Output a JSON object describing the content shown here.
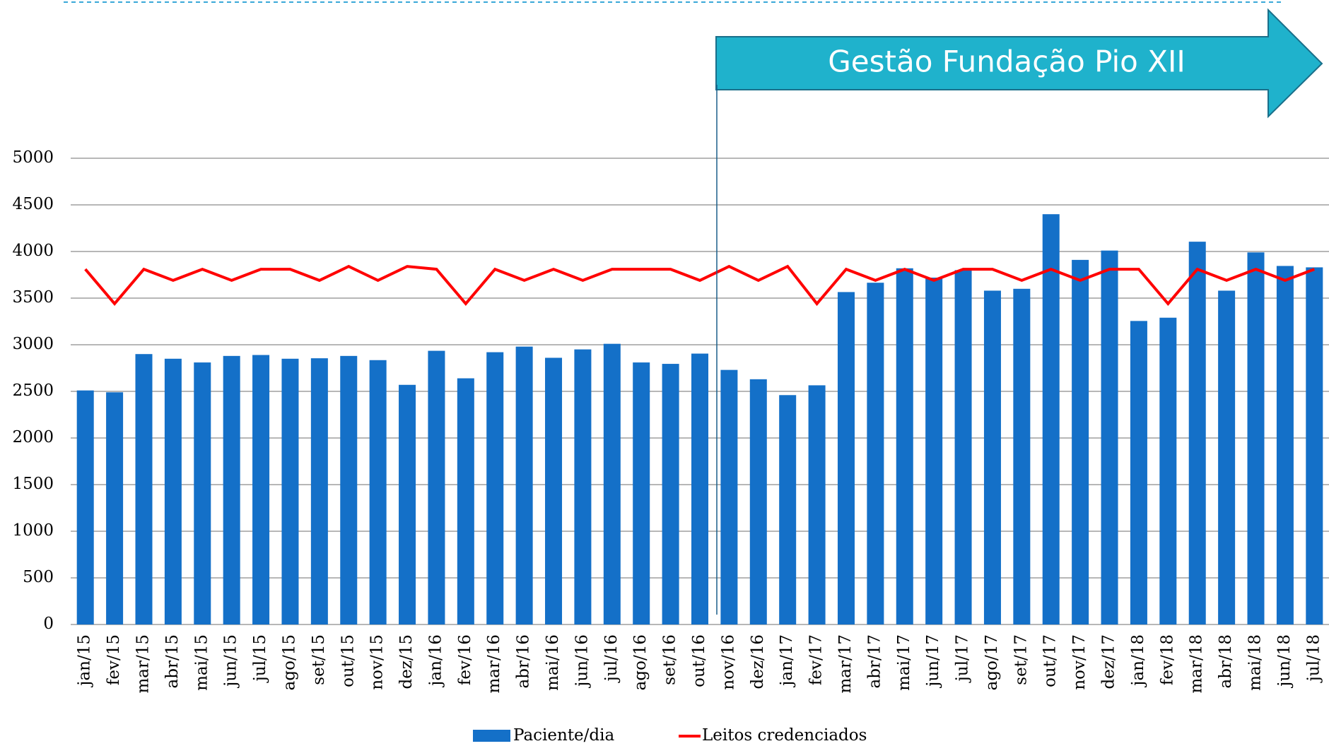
{
  "chart_data": {
    "type": "bar-line",
    "annotation": "Gestão Fundação Pio XII",
    "categories": [
      "jan/15",
      "fev/15",
      "mar/15",
      "abr/15",
      "mai/15",
      "jun/15",
      "jul/15",
      "ago/15",
      "set/15",
      "out/15",
      "nov/15",
      "dez/15",
      "jan/16",
      "fev/16",
      "mar/16",
      "abr/16",
      "mai/16",
      "jun/16",
      "jul/16",
      "ago/16",
      "set/16",
      "out/16",
      "nov/16",
      "dez/16",
      "jan/17",
      "fev/17",
      "mar/17",
      "abr/17",
      "mai/17",
      "jun/17",
      "jul/17",
      "ago/17",
      "set/17",
      "out/17",
      "nov/17",
      "dez/17",
      "jan/18",
      "fev/18",
      "mar/18",
      "abr/18",
      "mai/18",
      "jun/18",
      "jul/18"
    ],
    "series": [
      {
        "name": "Paciente/dia",
        "type": "bar",
        "color": "#1470c8",
        "values": [
          2510,
          2490,
          2900,
          2850,
          2810,
          2880,
          2890,
          2850,
          2855,
          2880,
          2835,
          2570,
          2935,
          2640,
          2920,
          2980,
          2860,
          2950,
          3010,
          2810,
          2795,
          2905,
          2730,
          2630,
          2460,
          2565,
          3565,
          3665,
          3820,
          3720,
          3800,
          3580,
          3600,
          4400,
          3910,
          4010,
          3255,
          3290,
          4105,
          3580,
          3990,
          3845,
          3830
        ]
      },
      {
        "name": "Leitos credenciados",
        "type": "line",
        "color": "#ff0000",
        "values": [
          3810,
          3440,
          3810,
          3690,
          3810,
          3690,
          3810,
          3810,
          3690,
          3840,
          3690,
          3840,
          3810,
          3440,
          3810,
          3690,
          3810,
          3690,
          3810,
          3810,
          3810,
          3690,
          3840,
          3690,
          3840,
          3440,
          3810,
          3690,
          3810,
          3690,
          3810,
          3810,
          3690,
          3810,
          3690,
          3810,
          3810,
          3440,
          3810,
          3690,
          3810,
          3690,
          3810
        ]
      }
    ],
    "ylim": [
      0,
      5000
    ],
    "yticks": [
      0,
      500,
      1000,
      1500,
      2000,
      2500,
      3000,
      3500,
      4000,
      4500,
      5000
    ],
    "grid": true,
    "legend": "bottom"
  }
}
